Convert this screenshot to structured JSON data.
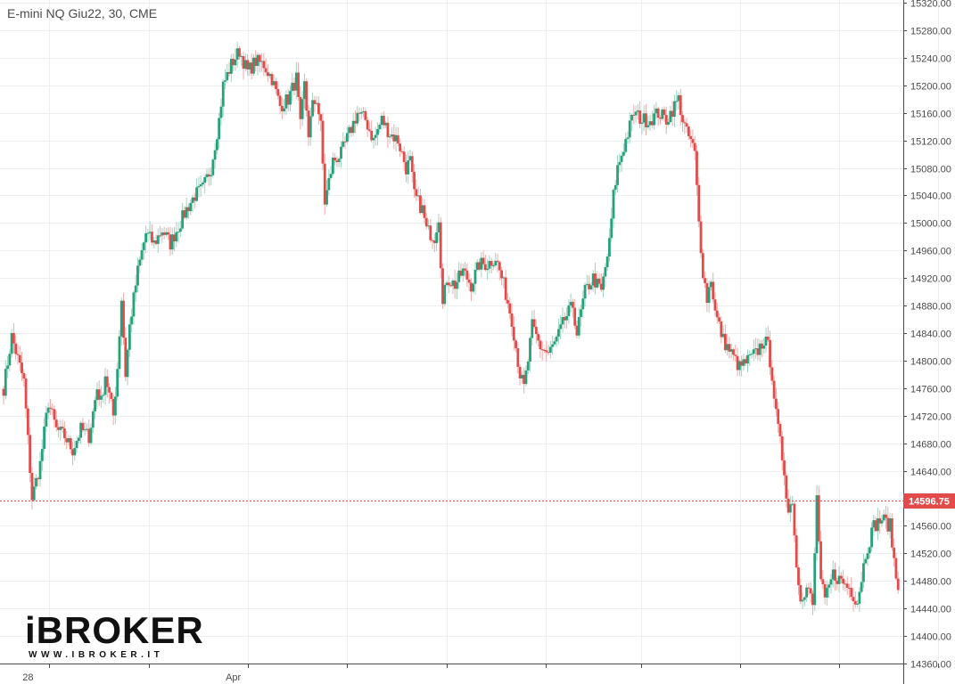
{
  "title": "E-mini NQ Giu22, 30, CME",
  "colors": {
    "up": "#26a17b",
    "down": "#e34b4b",
    "wick_up": "#9fd3c0",
    "wick_down": "#efaaaa",
    "price_line": "#e34b4b",
    "grid": "#eceef2"
  },
  "current_price": {
    "value": 14596.75,
    "label": "14596.75"
  },
  "logo": {
    "main": "iBROKER",
    "sub": "WWW.IBROKER.IT"
  },
  "chart_data": {
    "type": "candlestick",
    "title": "E-mini NQ Giu22, 30, CME",
    "ylim": [
      14360,
      15320
    ],
    "y_ticks": [
      "14360.00",
      "14400.00",
      "14440.00",
      "14480.00",
      "14520.00",
      "14560.00",
      "14600.00",
      "14640.00",
      "14680.00",
      "14720.00",
      "14760.00",
      "14800.00",
      "14840.00",
      "14880.00",
      "14920.00",
      "14960.00",
      "15000.00",
      "15040.00",
      "15080.00",
      "15120.00",
      "15160.00",
      "15200.00",
      "15240.00",
      "15280.00",
      "15320.00"
    ],
    "x_labels": [
      {
        "label": "28",
        "bar": 12
      },
      {
        "label": "Apr",
        "bar": 113
      }
    ],
    "grid": true,
    "close_path": [
      [
        0,
        14760
      ],
      [
        4,
        14835
      ],
      [
        10,
        14770
      ],
      [
        14,
        14600
      ],
      [
        18,
        14650
      ],
      [
        22,
        14740
      ],
      [
        26,
        14700
      ],
      [
        30,
        14690
      ],
      [
        34,
        14670
      ],
      [
        38,
        14700
      ],
      [
        42,
        14690
      ],
      [
        46,
        14760
      ],
      [
        48,
        14740
      ],
      [
        50,
        14780
      ],
      [
        54,
        14720
      ],
      [
        56,
        14790
      ],
      [
        58,
        14890
      ],
      [
        60,
        14780
      ],
      [
        62,
        14850
      ],
      [
        66,
        14930
      ],
      [
        70,
        14985
      ],
      [
        74,
        14970
      ],
      [
        78,
        14990
      ],
      [
        82,
        14970
      ],
      [
        86,
        14995
      ],
      [
        90,
        15020
      ],
      [
        94,
        15040
      ],
      [
        98,
        15050
      ],
      [
        102,
        15080
      ],
      [
        106,
        15150
      ],
      [
        108,
        15200
      ],
      [
        112,
        15230
      ],
      [
        116,
        15250
      ],
      [
        120,
        15220
      ],
      [
        124,
        15235
      ],
      [
        128,
        15230
      ],
      [
        132,
        15210
      ],
      [
        136,
        15170
      ],
      [
        140,
        15180
      ],
      [
        144,
        15210
      ],
      [
        146,
        15140
      ],
      [
        148,
        15200
      ],
      [
        150,
        15130
      ],
      [
        152,
        15170
      ],
      [
        154,
        15180
      ],
      [
        156,
        15140
      ],
      [
        158,
        15030
      ],
      [
        162,
        15090
      ],
      [
        166,
        15100
      ],
      [
        170,
        15130
      ],
      [
        174,
        15160
      ],
      [
        178,
        15150
      ],
      [
        182,
        15120
      ],
      [
        186,
        15150
      ],
      [
        190,
        15130
      ],
      [
        194,
        15120
      ],
      [
        198,
        15080
      ],
      [
        200,
        15090
      ],
      [
        202,
        15040
      ],
      [
        206,
        15020
      ],
      [
        208,
        14990
      ],
      [
        212,
        14980
      ],
      [
        214,
        15010
      ],
      [
        216,
        14880
      ],
      [
        218,
        14920
      ],
      [
        222,
        14910
      ],
      [
        226,
        14930
      ],
      [
        230,
        14910
      ],
      [
        234,
        14940
      ],
      [
        238,
        14940
      ],
      [
        242,
        14950
      ],
      [
        244,
        14930
      ],
      [
        246,
        14910
      ],
      [
        250,
        14860
      ],
      [
        254,
        14780
      ],
      [
        256,
        14760
      ],
      [
        258,
        14800
      ],
      [
        260,
        14850
      ],
      [
        264,
        14820
      ],
      [
        268,
        14810
      ],
      [
        272,
        14830
      ],
      [
        276,
        14860
      ],
      [
        280,
        14880
      ],
      [
        282,
        14840
      ],
      [
        286,
        14900
      ],
      [
        290,
        14920
      ],
      [
        294,
        14900
      ],
      [
        298,
        14970
      ],
      [
        300,
        15040
      ],
      [
        302,
        15080
      ],
      [
        306,
        15120
      ],
      [
        310,
        15160
      ],
      [
        314,
        15150
      ],
      [
        318,
        15150
      ],
      [
        322,
        15160
      ],
      [
        326,
        15150
      ],
      [
        330,
        15170
      ],
      [
        332,
        15180
      ],
      [
        334,
        15150
      ],
      [
        336,
        15130
      ],
      [
        338,
        15120
      ],
      [
        340,
        15100
      ],
      [
        342,
        15000
      ],
      [
        344,
        14930
      ],
      [
        346,
        14890
      ],
      [
        348,
        14920
      ],
      [
        350,
        14870
      ],
      [
        352,
        14850
      ],
      [
        354,
        14830
      ],
      [
        358,
        14810
      ],
      [
        362,
        14790
      ],
      [
        366,
        14800
      ],
      [
        370,
        14810
      ],
      [
        374,
        14830
      ],
      [
        376,
        14820
      ],
      [
        378,
        14780
      ],
      [
        380,
        14720
      ],
      [
        382,
        14680
      ],
      [
        384,
        14640
      ],
      [
        386,
        14580
      ],
      [
        388,
        14600
      ],
      [
        390,
        14500
      ],
      [
        392,
        14460
      ],
      [
        396,
        14470
      ],
      [
        398,
        14440
      ],
      [
        400,
        14600
      ],
      [
        402,
        14480
      ],
      [
        404,
        14450
      ],
      [
        408,
        14490
      ],
      [
        412,
        14480
      ],
      [
        416,
        14470
      ],
      [
        420,
        14450
      ],
      [
        424,
        14520
      ],
      [
        428,
        14560
      ],
      [
        432,
        14570
      ],
      [
        436,
        14560
      ],
      [
        440,
        14460
      ]
    ]
  }
}
